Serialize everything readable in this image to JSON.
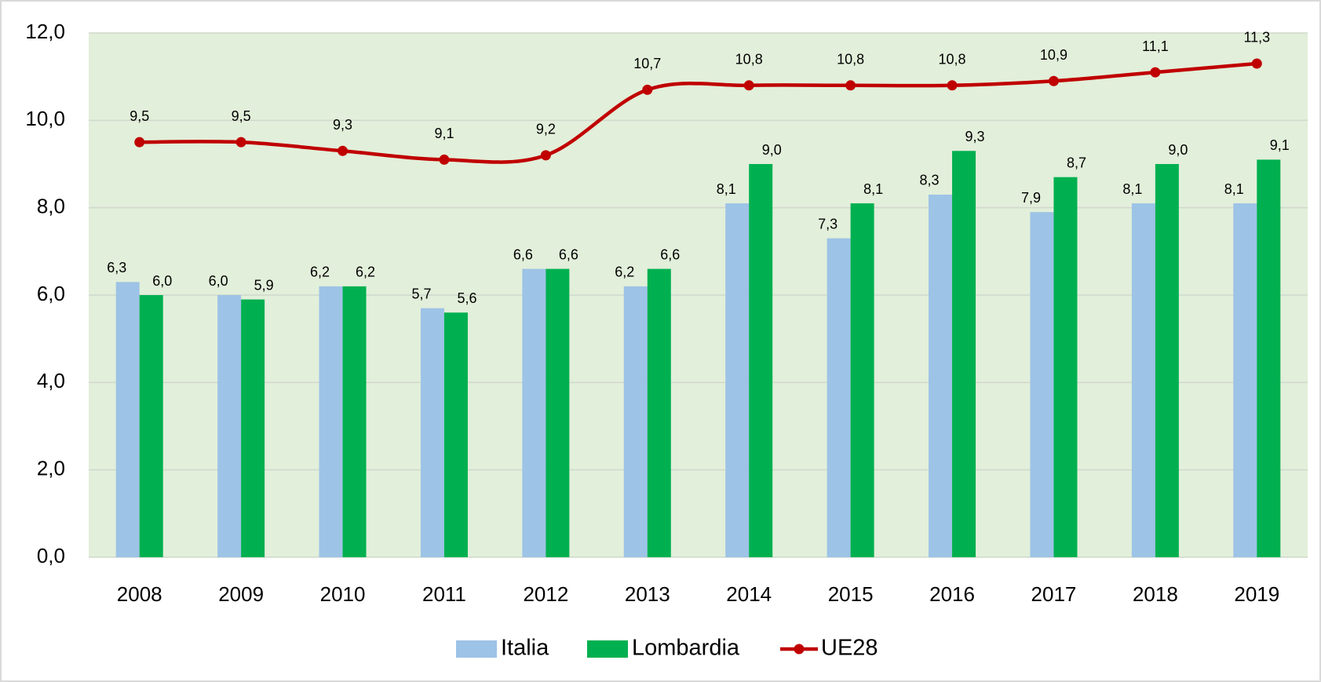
{
  "chart_data": {
    "type": "bar_line",
    "categories": [
      "2008",
      "2009",
      "2010",
      "2011",
      "2012",
      "2013",
      "2014",
      "2015",
      "2016",
      "2017",
      "2018",
      "2019"
    ],
    "series": [
      {
        "name": "Italia",
        "type": "bar",
        "color": "#9dc3e6",
        "values": [
          6.3,
          6.0,
          6.2,
          5.7,
          6.6,
          6.2,
          8.1,
          7.3,
          8.3,
          7.9,
          8.1,
          8.1
        ],
        "value_labels": [
          "6,3",
          "6,0",
          "6,2",
          "5,7",
          "6,6",
          "6,2",
          "8,1",
          "7,3",
          "8,3",
          "7,9",
          "8,1",
          "8,1"
        ]
      },
      {
        "name": "Lombardia",
        "type": "bar",
        "color": "#00b050",
        "values": [
          6.0,
          5.9,
          6.2,
          5.6,
          6.6,
          6.6,
          9.0,
          8.1,
          9.3,
          8.7,
          9.0,
          9.1
        ],
        "value_labels": [
          "6,0",
          "5,9",
          "6,2",
          "5,6",
          "6,6",
          "6,6",
          "9,0",
          "8,1",
          "9,3",
          "8,7",
          "9,0",
          "9,1"
        ]
      },
      {
        "name": "UE28",
        "type": "line",
        "color": "#c00000",
        "values": [
          9.5,
          9.5,
          9.3,
          9.1,
          9.2,
          10.7,
          10.8,
          10.8,
          10.8,
          10.9,
          11.1,
          11.3
        ],
        "value_labels": [
          "9,5",
          "9,5",
          "9,3",
          "9,1",
          "9,2",
          "10,7",
          "10,8",
          "10,8",
          "10,8",
          "10,9",
          "11,1",
          "11,3"
        ]
      }
    ],
    "ylim": [
      0,
      12
    ],
    "yticks": [
      {
        "value": 0,
        "label": "0,0"
      },
      {
        "value": 2,
        "label": "2,0"
      },
      {
        "value": 4,
        "label": "4,0"
      },
      {
        "value": 6,
        "label": "6,0"
      },
      {
        "value": 8,
        "label": "8,0"
      },
      {
        "value": 10,
        "label": "10,0"
      },
      {
        "value": 12,
        "label": "12,0"
      }
    ],
    "grid": true,
    "legend": "bottom",
    "plot_background": "#e2efda"
  }
}
